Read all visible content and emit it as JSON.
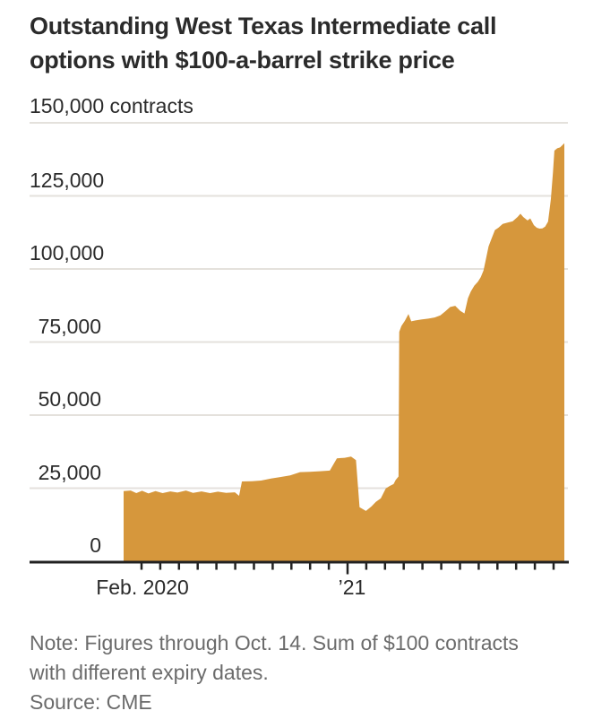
{
  "chart": {
    "title_lines": [
      "Outstanding West Texas Intermediate call",
      "options with $100-a-barrel strike price"
    ],
    "note_lines": [
      "Note: Figures through Oct. 14. Sum of $100 contracts",
      "with different expiry dates."
    ],
    "source": "Source: CME"
  },
  "y_axis": {
    "top_label": "150,000 contracts",
    "unit": "contracts",
    "labels": [
      "0",
      "25,000",
      "50,000",
      "75,000",
      "100,000",
      "125,000"
    ]
  },
  "x_axis": {
    "labels": [
      {
        "text": "Feb. 2020"
      },
      {
        "text": "’21"
      }
    ]
  },
  "colors": {
    "area": "#d6973c",
    "gridline": "#e4e1dc",
    "axis": "#222222",
    "title_text": "#2b2b2b",
    "label_text": "#2b2b2b",
    "note_text": "#6b6b6b",
    "background": "#ffffff"
  },
  "chart_data": {
    "type": "area",
    "title": "Outstanding West Texas Intermediate call options with $100-a-barrel strike price",
    "xlabel": "",
    "ylabel": "contracts",
    "ylim": [
      0,
      150000
    ],
    "y_ticks": [
      0,
      25000,
      50000,
      75000,
      100000,
      125000,
      150000
    ],
    "x_tick_labels": [
      "Feb. 2020",
      "’21"
    ],
    "grid": "horizontal",
    "legend": "none",
    "x": [
      "2020-01-31",
      "2020-02-10",
      "2020-02-18",
      "2020-02-26",
      "2020-03-06",
      "2020-03-16",
      "2020-03-26",
      "2020-04-06",
      "2020-04-16",
      "2020-04-28",
      "2020-05-08",
      "2020-05-20",
      "2020-06-01",
      "2020-06-12",
      "2020-06-24",
      "2020-07-06",
      "2020-07-12",
      "2020-07-16",
      "2020-07-30",
      "2020-08-12",
      "2020-08-26",
      "2020-09-08",
      "2020-09-22",
      "2020-10-06",
      "2020-10-20",
      "2020-11-03",
      "2020-11-17",
      "2020-11-27",
      "2020-12-08",
      "2020-12-17",
      "2020-12-24",
      "2020-12-29",
      "2021-01-07",
      "2021-01-15",
      "2021-01-21",
      "2021-01-28",
      "2021-02-04",
      "2021-02-10",
      "2021-02-15",
      "2021-02-18",
      "2021-02-22",
      "2021-02-23",
      "2021-02-26",
      "2021-03-03",
      "2021-03-08",
      "2021-03-12",
      "2021-03-18",
      "2021-03-26",
      "2021-04-05",
      "2021-04-14",
      "2021-04-22",
      "2021-04-29",
      "2021-05-06",
      "2021-05-13",
      "2021-05-20",
      "2021-05-26",
      "2021-05-31",
      "2021-06-04",
      "2021-06-09",
      "2021-06-14",
      "2021-06-18",
      "2021-06-22",
      "2021-06-25",
      "2021-06-29",
      "2021-07-03",
      "2021-07-08",
      "2021-07-13",
      "2021-07-19",
      "2021-07-26",
      "2021-08-02",
      "2021-08-09",
      "2021-08-13",
      "2021-08-17",
      "2021-08-23",
      "2021-08-27",
      "2021-09-01",
      "2021-09-05",
      "2021-09-09",
      "2021-09-13",
      "2021-09-17",
      "2021-09-21",
      "2021-09-23",
      "2021-09-25",
      "2021-09-28",
      "2021-09-30",
      "2021-10-04",
      "2021-10-08",
      "2021-10-14"
    ],
    "values": [
      24000,
      24200,
      23300,
      24100,
      23200,
      24000,
      23300,
      23900,
      23500,
      24200,
      23400,
      23900,
      23300,
      23800,
      23400,
      23600,
      22400,
      27300,
      27400,
      27600,
      28300,
      28800,
      29400,
      30500,
      30600,
      30800,
      31000,
      35200,
      35400,
      35800,
      34600,
      18500,
      17200,
      18800,
      20300,
      21500,
      24900,
      25800,
      26400,
      27800,
      29000,
      78500,
      80500,
      82300,
      84600,
      82100,
      82400,
      82700,
      83000,
      83400,
      84100,
      85500,
      87000,
      87400,
      85700,
      84800,
      90000,
      92300,
      94300,
      95600,
      97200,
      99500,
      103000,
      107700,
      110200,
      113300,
      114100,
      115400,
      115900,
      116300,
      117800,
      118900,
      117800,
      116600,
      117300,
      115000,
      114100,
      113800,
      113900,
      114500,
      116200,
      120000,
      124000,
      133000,
      140500,
      141300,
      141600,
      143000
    ]
  }
}
